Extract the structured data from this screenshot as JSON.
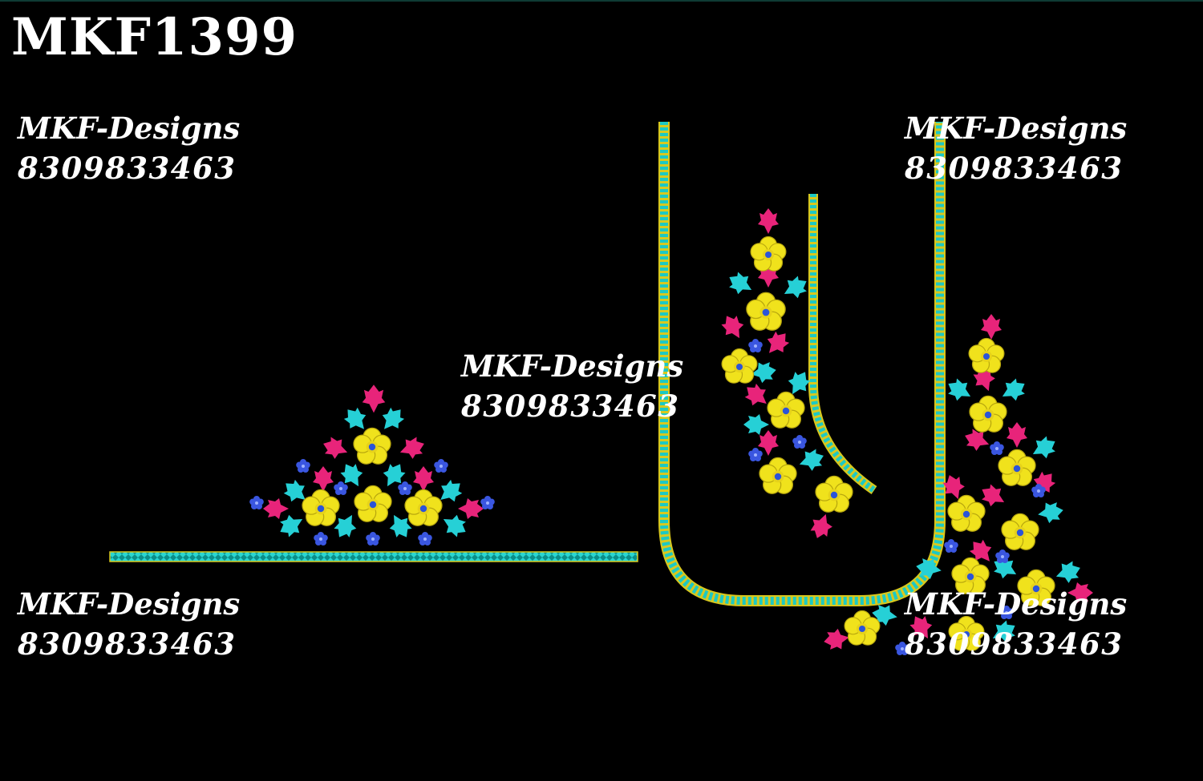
{
  "design_code": "MKF1399",
  "watermarks": [
    {
      "name": "MKF-Designs",
      "phone": "8309833463"
    },
    {
      "name": "MKF-Designs",
      "phone": "8309833463"
    },
    {
      "name": "MKF-Designs",
      "phone": "8309833463"
    },
    {
      "name": "MKF-Designs",
      "phone": "8309833463"
    },
    {
      "name": "MKF-Designs",
      "phone": "8309833463"
    }
  ],
  "colors": {
    "background": "#000000",
    "petal_yellow": "#f0e21c",
    "leaf_cyan": "#26d0d6",
    "leaf_pink": "#e8247a",
    "small_flower_blue": "#3a56e0",
    "border_stitch": "#d8c81e"
  }
}
